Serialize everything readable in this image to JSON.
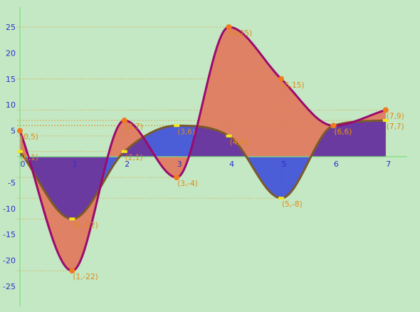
{
  "colors": {
    "background": "#c3e8c3",
    "axis": "#7de07d",
    "tick_label": "#2f2fd0",
    "guide_line": "#e0a040",
    "point_label": "#e08a18",
    "series_a_stroke": "#9b0a6e",
    "series_a_fill": "#e07b5f",
    "series_a_marker": "#f07a1e",
    "series_b_stroke": "#7a5a2a",
    "series_b_fill": "#4455d8",
    "series_b_marker": "#f5e61e",
    "overlap_fill": "#6a3aa0"
  },
  "chart_data": {
    "type": "area",
    "grid": false,
    "xlim": [
      0,
      7
    ],
    "ylim": [
      -28,
      28
    ],
    "x_ticks": [
      0,
      1,
      2,
      3,
      4,
      5,
      6,
      7
    ],
    "y_ticks": [
      -25,
      -20,
      -15,
      -10,
      -5,
      5,
      10,
      15,
      20,
      25
    ],
    "series": [
      {
        "points": [
          {
            "x": 0,
            "y": 5,
            "label": "(0,5)"
          },
          {
            "x": 1,
            "y": -22,
            "label": "(1,-22)"
          },
          {
            "x": 2,
            "y": 7,
            "label": "(2,7)"
          },
          {
            "x": 3,
            "y": -4,
            "label": "(3,-4)"
          },
          {
            "x": 4,
            "y": 25,
            "label": "(4,25)"
          },
          {
            "x": 5,
            "y": 15,
            "label": "(5,15)"
          },
          {
            "x": 6,
            "y": 6,
            "label": "(6,6)"
          },
          {
            "x": 7,
            "y": 9,
            "label": "(7,9)"
          }
        ]
      },
      {
        "points": [
          {
            "x": 0,
            "y": 1,
            "label": "(0,1)"
          },
          {
            "x": 1,
            "y": -12,
            "label": "(1,-12)"
          },
          {
            "x": 2,
            "y": 1,
            "label": "(2,1)"
          },
          {
            "x": 3,
            "y": 6,
            "label": "(3,6)"
          },
          {
            "x": 4,
            "y": 4,
            "label": "(4,4)"
          },
          {
            "x": 5,
            "y": -8,
            "label": "(5,-8)"
          },
          {
            "x": 6,
            "y": 6,
            "label": "(6,6)"
          },
          {
            "x": 7,
            "y": 7,
            "label": "(7,7)"
          }
        ]
      }
    ]
  }
}
